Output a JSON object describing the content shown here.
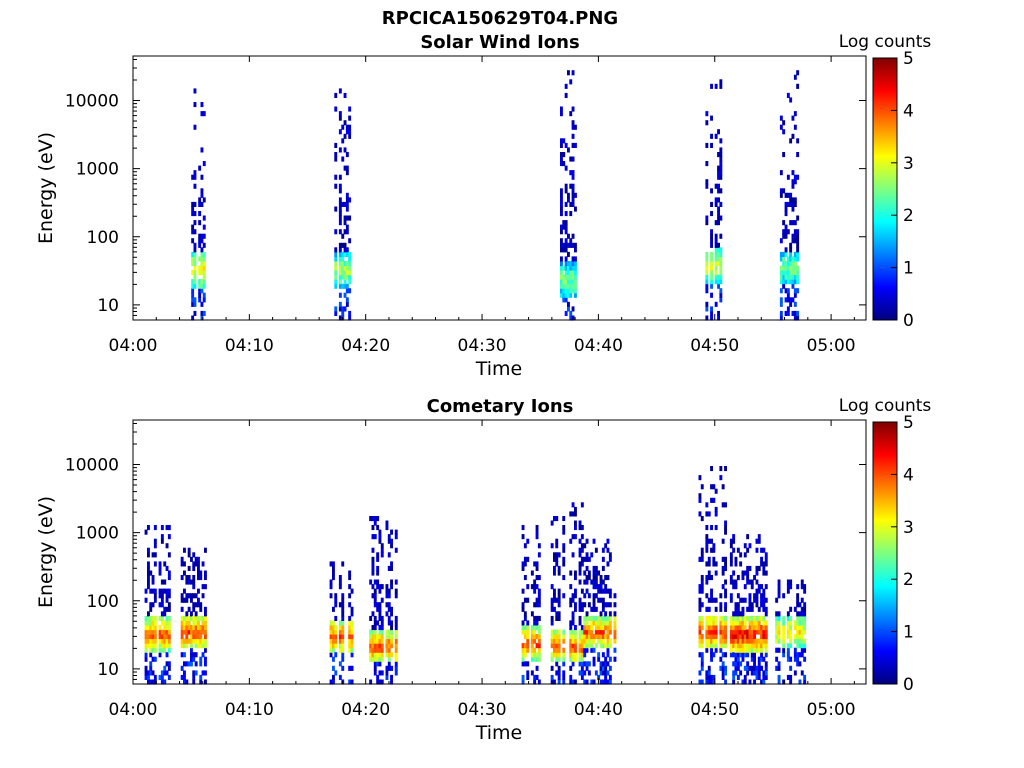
{
  "figure": {
    "filename": "RPCICA150629T04.PNG"
  },
  "colormap": {
    "type": "jet",
    "stops": [
      "#00007f",
      "#0000ff",
      "#007fff",
      "#00ffff",
      "#7fff7f",
      "#ffff00",
      "#ff7f00",
      "#ff0000",
      "#7f0000"
    ]
  },
  "chart_data": [
    {
      "type": "heatmap",
      "title": "Solar Wind Ions",
      "xlabel": "Time",
      "ylabel": "Energy (eV)",
      "x_ticks": [
        "04:00",
        "04:10",
        "04:20",
        "04:30",
        "04:40",
        "04:50",
        "05:00"
      ],
      "x_range_minutes": [
        0,
        63
      ],
      "y_scale": "log",
      "y_ticks": [
        "10",
        "100",
        "1000",
        "10000"
      ],
      "y_range": [
        6,
        45000
      ],
      "colorbar": {
        "label": "Log counts",
        "ticks": [
          "0",
          "1",
          "2",
          "3",
          "4",
          "5"
        ],
        "range": [
          0,
          5
        ]
      },
      "bursts": [
        {
          "t_start": 5.0,
          "t_end": 6.2,
          "core_energy": 30,
          "peak_log_counts": 3.2,
          "e_max": 14000
        },
        {
          "t_start": 17.3,
          "t_end": 18.8,
          "core_energy": 30,
          "peak_log_counts": 2.8,
          "e_max": 17000
        },
        {
          "t_start": 36.7,
          "t_end": 38.1,
          "core_energy": 22,
          "peak_log_counts": 2.5,
          "e_max": 27000
        },
        {
          "t_start": 49.2,
          "t_end": 50.5,
          "core_energy": 35,
          "peak_log_counts": 3.0,
          "e_max": 19000
        },
        {
          "t_start": 55.6,
          "t_end": 57.2,
          "core_energy": 32,
          "peak_log_counts": 2.5,
          "e_max": 26000
        }
      ]
    },
    {
      "type": "heatmap",
      "title": "Cometary Ions",
      "xlabel": "Time",
      "ylabel": "Energy (eV)",
      "x_ticks": [
        "04:00",
        "04:10",
        "04:20",
        "04:30",
        "04:40",
        "04:50",
        "05:00"
      ],
      "x_range_minutes": [
        0,
        63
      ],
      "y_scale": "log",
      "y_ticks": [
        "10",
        "100",
        "1000",
        "10000"
      ],
      "y_range": [
        6,
        45000
      ],
      "colorbar": {
        "label": "Log counts",
        "ticks": [
          "0",
          "1",
          "2",
          "3",
          "4",
          "5"
        ],
        "range": [
          0,
          5
        ]
      },
      "bursts": [
        {
          "t_start": 1.0,
          "t_end": 3.1,
          "core_energy": 30,
          "peak_log_counts": 4.0,
          "e_max": 1200
        },
        {
          "t_start": 4.1,
          "t_end": 6.3,
          "core_energy": 32,
          "peak_log_counts": 4.1,
          "e_max": 600
        },
        {
          "t_start": 16.9,
          "t_end": 18.8,
          "core_energy": 28,
          "peak_log_counts": 4.0,
          "e_max": 350
        },
        {
          "t_start": 20.3,
          "t_end": 22.5,
          "core_energy": 20,
          "peak_log_counts": 4.0,
          "e_max": 1700
        },
        {
          "t_start": 33.4,
          "t_end": 35.0,
          "core_energy": 22,
          "peak_log_counts": 4.1,
          "e_max": 1200
        },
        {
          "t_start": 35.9,
          "t_end": 38.6,
          "core_energy": 20,
          "peak_log_counts": 4.0,
          "e_max": 2400
        },
        {
          "t_start": 38.7,
          "t_end": 41.5,
          "core_energy": 32,
          "peak_log_counts": 4.0,
          "e_max": 700
        },
        {
          "t_start": 48.6,
          "t_end": 51.0,
          "core_energy": 32,
          "peak_log_counts": 4.2,
          "e_max": 9500
        },
        {
          "t_start": 51.3,
          "t_end": 54.4,
          "core_energy": 30,
          "peak_log_counts": 4.5,
          "e_max": 900
        },
        {
          "t_start": 55.2,
          "t_end": 57.8,
          "core_energy": 32,
          "peak_log_counts": 3.3,
          "e_max": 200
        }
      ]
    }
  ]
}
